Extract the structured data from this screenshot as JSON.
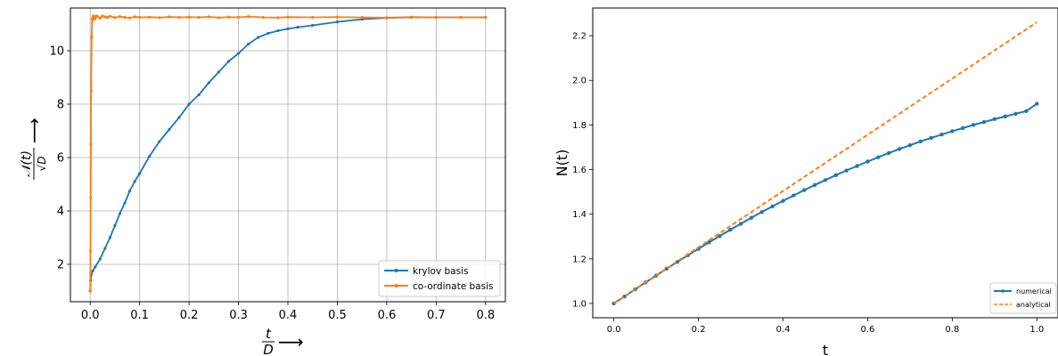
{
  "chart_data": [
    {
      "type": "line",
      "title": "",
      "xlabel": "t/D ⟶",
      "xlabel_parts": {
        "numerator": "t",
        "denominator": "D",
        "arrow": "⟶"
      },
      "ylabel": "𝒩(t)/√D ⟶",
      "ylabel_parts": {
        "numerator": "𝒩(t)",
        "denominator": "√D",
        "arrow": "⟶"
      },
      "xlim": [
        -0.04,
        0.84
      ],
      "ylim": [
        0.6,
        11.6
      ],
      "xticks": [
        0.0,
        0.1,
        0.2,
        0.3,
        0.4,
        0.5,
        0.6,
        0.7,
        0.8
      ],
      "xtick_labels": [
        "0.0",
        "0.1",
        "0.2",
        "0.3",
        "0.4",
        "0.5",
        "0.6",
        "0.7",
        "0.8"
      ],
      "yticks": [
        2,
        4,
        6,
        8,
        10
      ],
      "ytick_labels": [
        "2",
        "4",
        "6",
        "8",
        "10"
      ],
      "grid": true,
      "legend_position": "lower-right",
      "series": [
        {
          "name": "krylov basis",
          "color": "#1f77b4",
          "x": [
            0.0,
            0.001,
            0.002,
            0.005,
            0.01,
            0.02,
            0.03,
            0.04,
            0.05,
            0.06,
            0.07,
            0.08,
            0.09,
            0.1,
            0.12,
            0.14,
            0.16,
            0.18,
            0.2,
            0.22,
            0.24,
            0.26,
            0.28,
            0.3,
            0.32,
            0.34,
            0.36,
            0.38,
            0.4,
            0.42,
            0.45,
            0.5,
            0.55,
            0.6,
            0.65,
            0.7,
            0.75,
            0.8
          ],
          "y": [
            1.0,
            1.4,
            1.6,
            1.75,
            1.9,
            2.2,
            2.6,
            3.0,
            3.45,
            3.9,
            4.3,
            4.75,
            5.1,
            5.4,
            6.05,
            6.6,
            7.05,
            7.5,
            8.0,
            8.35,
            8.8,
            9.2,
            9.6,
            9.9,
            10.25,
            10.5,
            10.65,
            10.75,
            10.82,
            10.88,
            10.95,
            11.08,
            11.18,
            11.23,
            11.25,
            11.25,
            11.25,
            11.25
          ]
        },
        {
          "name": "co-ordinate basis",
          "color": "#ff7f0e",
          "x": [
            0.0,
            0.0005,
            0.001,
            0.0015,
            0.002,
            0.003,
            0.004,
            0.005,
            0.006,
            0.008,
            0.01,
            0.012,
            0.015,
            0.02,
            0.025,
            0.03,
            0.035,
            0.04,
            0.05,
            0.06,
            0.07,
            0.08,
            0.09,
            0.1,
            0.12,
            0.14,
            0.16,
            0.18,
            0.2,
            0.22,
            0.24,
            0.26,
            0.28,
            0.3,
            0.32,
            0.35,
            0.38,
            0.4,
            0.45,
            0.5,
            0.55,
            0.6,
            0.65,
            0.7,
            0.75,
            0.8
          ],
          "y": [
            1.0,
            2.5,
            4.5,
            6.5,
            8.5,
            10.5,
            11.2,
            11.15,
            11.3,
            11.25,
            11.2,
            11.3,
            11.28,
            11.22,
            11.3,
            11.27,
            11.25,
            11.29,
            11.24,
            11.28,
            11.25,
            11.23,
            11.27,
            11.25,
            11.26,
            11.24,
            11.27,
            11.25,
            11.26,
            11.25,
            11.27,
            11.24,
            11.26,
            11.25,
            11.28,
            11.25,
            11.24,
            11.26,
            11.25,
            11.26,
            11.25,
            11.24,
            11.26,
            11.25,
            11.25,
            11.25
          ]
        }
      ]
    },
    {
      "type": "line",
      "title": "",
      "xlabel": "t",
      "ylabel": "N(t)",
      "xlim": [
        -0.05,
        1.05
      ],
      "ylim": [
        0.936,
        2.324
      ],
      "xticks": [
        0.0,
        0.2,
        0.4,
        0.6,
        0.8,
        1.0
      ],
      "xtick_labels": [
        "0.0",
        "0.2",
        "0.4",
        "0.6",
        "0.8",
        "1.0"
      ],
      "yticks": [
        1.0,
        1.2,
        1.4,
        1.6,
        1.8,
        2.0,
        2.2
      ],
      "ytick_labels": [
        "1.0",
        "1.2",
        "1.4",
        "1.6",
        "1.8",
        "2.0",
        "2.2"
      ],
      "grid": false,
      "legend_position": "lower-right",
      "series": [
        {
          "name": "numerical",
          "color": "#1f77b4",
          "style": "solid-markers",
          "x": [
            0.0,
            0.025,
            0.05,
            0.075,
            0.1,
            0.125,
            0.15,
            0.175,
            0.2,
            0.225,
            0.25,
            0.275,
            0.3,
            0.325,
            0.35,
            0.375,
            0.4,
            0.425,
            0.45,
            0.475,
            0.5,
            0.525,
            0.55,
            0.575,
            0.6,
            0.625,
            0.65,
            0.675,
            0.7,
            0.725,
            0.75,
            0.775,
            0.8,
            0.825,
            0.85,
            0.875,
            0.9,
            0.925,
            0.95,
            0.975,
            1.0
          ],
          "y": [
            1.0,
            1.031,
            1.063,
            1.094,
            1.125,
            1.156,
            1.186,
            1.216,
            1.245,
            1.274,
            1.302,
            1.33,
            1.357,
            1.384,
            1.41,
            1.435,
            1.46,
            1.484,
            1.508,
            1.531,
            1.553,
            1.575,
            1.596,
            1.616,
            1.636,
            1.655,
            1.674,
            1.692,
            1.709,
            1.726,
            1.742,
            1.757,
            1.772,
            1.786,
            1.8,
            1.813,
            1.826,
            1.838,
            1.85,
            1.862,
            1.895
          ]
        },
        {
          "name": "analytical",
          "color": "#ff7f0e",
          "style": "dashed",
          "x": [
            0.0,
            1.0
          ],
          "y": [
            1.0,
            2.26
          ]
        }
      ]
    }
  ]
}
